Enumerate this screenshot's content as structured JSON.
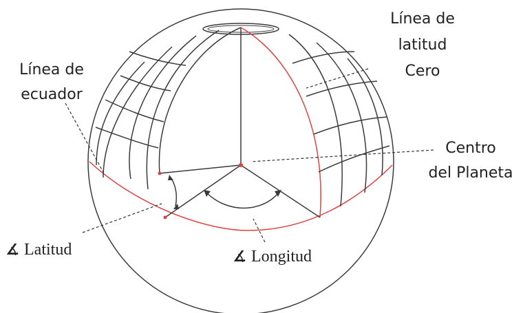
{
  "labels": {
    "latitud_cero": [
      "Línea de",
      "latitud",
      "Cero"
    ],
    "ecuador": [
      "Línea de",
      "ecuador"
    ],
    "centro": [
      "Centro",
      "del Planeta"
    ],
    "latitud_angle": "Latitud",
    "longitud_angle": "Longitud",
    "angle_symbol": "∡"
  },
  "colors": {
    "outline": "#3a3a3a",
    "red": "#e04040",
    "leader": "#333333"
  }
}
